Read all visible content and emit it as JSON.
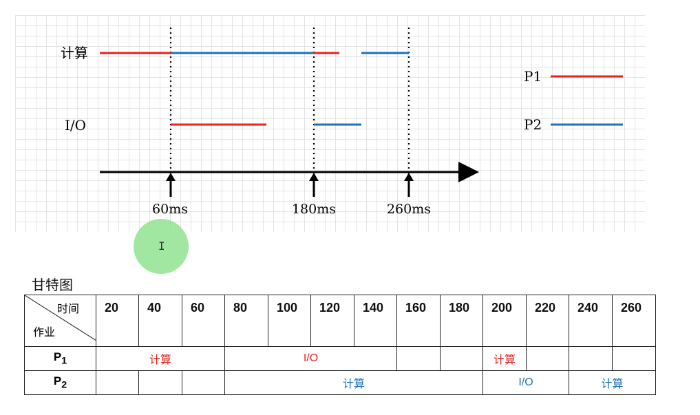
{
  "diagram": {
    "row_compute": "计算",
    "row_io": "I/O",
    "legend": [
      {
        "name": "P1",
        "color": "#e8221c"
      },
      {
        "name": "P2",
        "color": "#1c6fb8"
      }
    ],
    "ticks": [
      "60ms",
      "180ms",
      "260ms"
    ]
  },
  "gantt": {
    "title": "甘特图",
    "corner_time": "时间",
    "corner_job": "作业",
    "times": [
      "20",
      "40",
      "60",
      "80",
      "100",
      "120",
      "140",
      "160",
      "180",
      "200",
      "220",
      "240",
      "260"
    ],
    "p1_label": "P",
    "p1_sub": "1",
    "p2_label": "P",
    "p2_sub": "2",
    "p1_compute": "计算",
    "p1_io": "I/O",
    "p1_compute2": "计算",
    "p2_compute": "计算",
    "p2_io": "I/O",
    "p2_compute2": "计算"
  },
  "colors": {
    "p1": "#e8221c",
    "p2": "#1c6fb8"
  }
}
